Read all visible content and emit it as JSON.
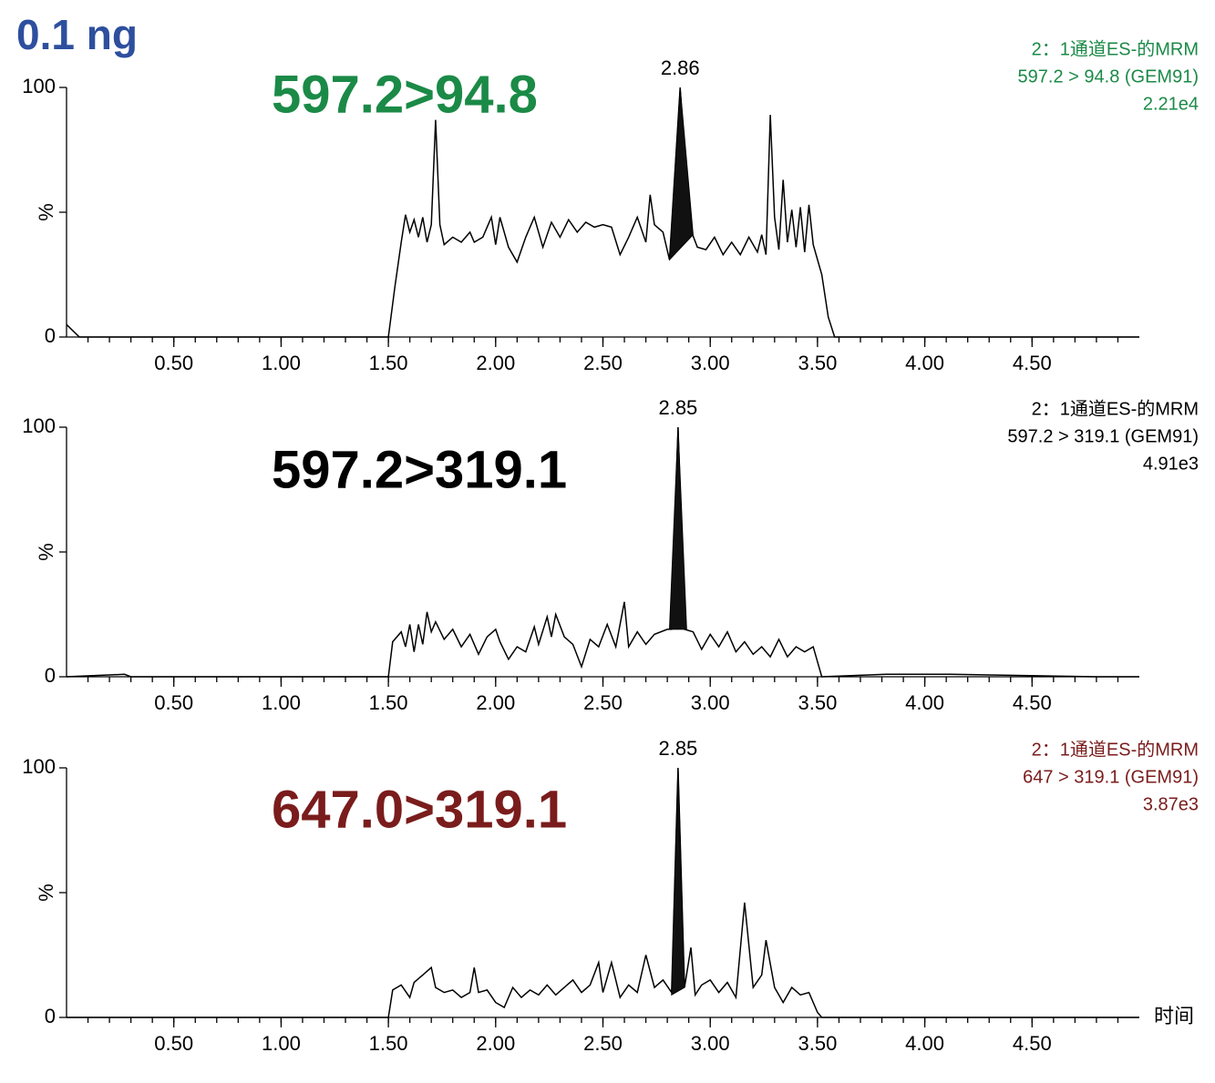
{
  "title": "0.1 ng",
  "chart_data": [
    {
      "type": "line",
      "annotation": "597.2>94.8",
      "color": "#1b8a47",
      "line_color": "#000000",
      "info": [
        "2：1通道ES-的MRM",
        "597.2 > 94.8 (GEM91)",
        "2.21e4"
      ],
      "ylabel": "%",
      "xlim": [
        0,
        5
      ],
      "ylim": [
        0,
        100
      ],
      "yticks": [
        0,
        100
      ],
      "xticks": [
        {
          "value": 0.5,
          "label": "0.50"
        },
        {
          "value": 1.0,
          "label": "1.00"
        },
        {
          "value": 1.5,
          "label": "1.50"
        },
        {
          "value": 2.0,
          "label": "2.00"
        },
        {
          "value": 2.5,
          "label": "2.50"
        },
        {
          "value": 3.0,
          "label": "3.00"
        },
        {
          "value": 3.5,
          "label": "3.50"
        },
        {
          "value": 4.0,
          "label": "4.00"
        },
        {
          "value": 4.5,
          "label": "4.50"
        }
      ],
      "x": [
        0,
        0.06,
        1.5,
        1.53,
        1.56,
        1.58,
        1.6,
        1.62,
        1.64,
        1.66,
        1.68,
        1.7,
        1.72,
        1.74,
        1.76,
        1.8,
        1.84,
        1.88,
        1.9,
        1.94,
        1.98,
        2.0,
        2.02,
        2.06,
        2.1,
        2.14,
        2.18,
        2.22,
        2.26,
        2.3,
        2.34,
        2.38,
        2.42,
        2.46,
        2.5,
        2.54,
        2.58,
        2.62,
        2.66,
        2.7,
        2.72,
        2.74,
        2.78,
        2.81,
        2.86,
        2.9,
        2.94,
        2.98,
        3.02,
        3.06,
        3.1,
        3.14,
        3.18,
        3.22,
        3.24,
        3.26,
        3.28,
        3.3,
        3.32,
        3.34,
        3.36,
        3.38,
        3.4,
        3.42,
        3.44,
        3.46,
        3.48,
        3.52,
        3.55,
        3.58,
        5
      ],
      "values": [
        5,
        0,
        0,
        20,
        38,
        49,
        42,
        47,
        40,
        48,
        38,
        45,
        87,
        45,
        37,
        40,
        38,
        42,
        38,
        40,
        48,
        37,
        48,
        36,
        30,
        40,
        48,
        36,
        46,
        40,
        47,
        42,
        46,
        44,
        45,
        44,
        33,
        40,
        48,
        38,
        57,
        45,
        42,
        31,
        100,
        45,
        36,
        35,
        40,
        33,
        38,
        33,
        40,
        34,
        41,
        33,
        89,
        48,
        35,
        63,
        38,
        51,
        36,
        52,
        34,
        53,
        37,
        25,
        8,
        0,
        0
      ],
      "peak": {
        "label": 2.86,
        "x": [
          2.81,
          2.86,
          2.92
        ],
        "values": [
          31,
          100,
          41
        ]
      }
    },
    {
      "type": "line",
      "annotation": "597.2>319.1",
      "color": "#000000",
      "line_color": "#000000",
      "info": [
        "2：1通道ES-的MRM",
        "597.2 > 319.1 (GEM91)",
        "4.91e3"
      ],
      "ylabel": "%",
      "xlim": [
        0,
        5
      ],
      "ylim": [
        0,
        100
      ],
      "yticks": [
        0,
        100
      ],
      "xticks": [
        {
          "value": 0.5,
          "label": "0.50"
        },
        {
          "value": 1.0,
          "label": "1.00"
        },
        {
          "value": 1.5,
          "label": "1.50"
        },
        {
          "value": 2.0,
          "label": "2.00"
        },
        {
          "value": 2.5,
          "label": "2.50"
        },
        {
          "value": 3.0,
          "label": "3.00"
        },
        {
          "value": 3.5,
          "label": "3.50"
        },
        {
          "value": 4.0,
          "label": "4.00"
        },
        {
          "value": 4.5,
          "label": "4.50"
        }
      ],
      "x": [
        0,
        0.27,
        0.3,
        1.5,
        1.52,
        1.56,
        1.58,
        1.6,
        1.62,
        1.64,
        1.66,
        1.68,
        1.7,
        1.72,
        1.76,
        1.8,
        1.84,
        1.88,
        1.92,
        1.96,
        2.0,
        2.02,
        2.06,
        2.1,
        2.14,
        2.18,
        2.2,
        2.24,
        2.26,
        2.28,
        2.32,
        2.36,
        2.4,
        2.44,
        2.48,
        2.52,
        2.56,
        2.6,
        2.62,
        2.66,
        2.7,
        2.74,
        2.8,
        2.82,
        2.85,
        2.88,
        2.92,
        2.96,
        3.0,
        3.04,
        3.08,
        3.12,
        3.16,
        3.2,
        3.24,
        3.28,
        3.32,
        3.36,
        3.4,
        3.44,
        3.48,
        3.5,
        3.52,
        3.82,
        4.12,
        4.8,
        5
      ],
      "values": [
        0,
        1,
        0,
        0,
        14,
        18,
        12,
        21,
        10,
        21,
        13,
        26,
        18,
        22,
        15,
        19,
        12,
        17,
        9,
        16,
        19,
        14,
        7,
        12,
        10,
        20,
        13,
        24,
        16,
        25,
        16,
        13,
        4,
        15,
        12,
        21,
        12,
        30,
        12,
        18,
        13,
        17,
        19,
        19,
        100,
        19,
        18,
        11,
        17,
        12,
        18,
        10,
        14,
        9,
        12,
        8,
        15,
        8,
        12,
        10,
        12,
        6,
        0,
        1,
        1,
        0,
        0
      ],
      "peak": {
        "label": 2.85,
        "x": [
          2.81,
          2.85,
          2.89
        ],
        "values": [
          19,
          100,
          19
        ]
      }
    },
    {
      "type": "line",
      "annotation": "647.0>319.1",
      "color": "#7a1c1c",
      "line_color": "#000000",
      "info": [
        "2：1通道ES-的MRM",
        "647 > 319.1 (GEM91)",
        "3.87e3"
      ],
      "ylabel": "%",
      "xlabel": "时间",
      "xlim": [
        0,
        5
      ],
      "ylim": [
        0,
        100
      ],
      "yticks": [
        0,
        100
      ],
      "xticks": [
        {
          "value": 0.5,
          "label": "0.50"
        },
        {
          "value": 1.0,
          "label": "1.00"
        },
        {
          "value": 1.5,
          "label": "1.50"
        },
        {
          "value": 2.0,
          "label": "2.00"
        },
        {
          "value": 2.5,
          "label": "2.50"
        },
        {
          "value": 3.0,
          "label": "3.00"
        },
        {
          "value": 3.5,
          "label": "3.50"
        },
        {
          "value": 4.0,
          "label": "4.00"
        },
        {
          "value": 4.5,
          "label": "4.50"
        }
      ],
      "x": [
        0,
        1.5,
        1.52,
        1.56,
        1.6,
        1.62,
        1.66,
        1.7,
        1.72,
        1.76,
        1.8,
        1.84,
        1.88,
        1.9,
        1.92,
        1.96,
        2.0,
        2.04,
        2.08,
        2.12,
        2.16,
        2.2,
        2.24,
        2.28,
        2.32,
        2.36,
        2.4,
        2.44,
        2.48,
        2.5,
        2.54,
        2.58,
        2.62,
        2.66,
        2.7,
        2.74,
        2.78,
        2.82,
        2.85,
        2.88,
        2.91,
        2.93,
        2.96,
        3.0,
        3.04,
        3.08,
        3.12,
        3.16,
        3.2,
        3.24,
        3.26,
        3.3,
        3.34,
        3.38,
        3.42,
        3.46,
        3.5,
        3.52,
        5
      ],
      "values": [
        0,
        0,
        11,
        13,
        8,
        14,
        17,
        20,
        12,
        10,
        11,
        8,
        10,
        20,
        10,
        11,
        6,
        4,
        12,
        8,
        11,
        9,
        13,
        9,
        12,
        15,
        10,
        13,
        22,
        10,
        22,
        8,
        13,
        10,
        25,
        12,
        15,
        10,
        100,
        12,
        28,
        9,
        13,
        15,
        10,
        14,
        8,
        46,
        12,
        17,
        31,
        12,
        6,
        12,
        9,
        10,
        2,
        0,
        0
      ],
      "peak": {
        "label": 2.85,
        "x": [
          2.82,
          2.85,
          2.88
        ],
        "values": [
          9,
          100,
          12
        ]
      }
    }
  ]
}
